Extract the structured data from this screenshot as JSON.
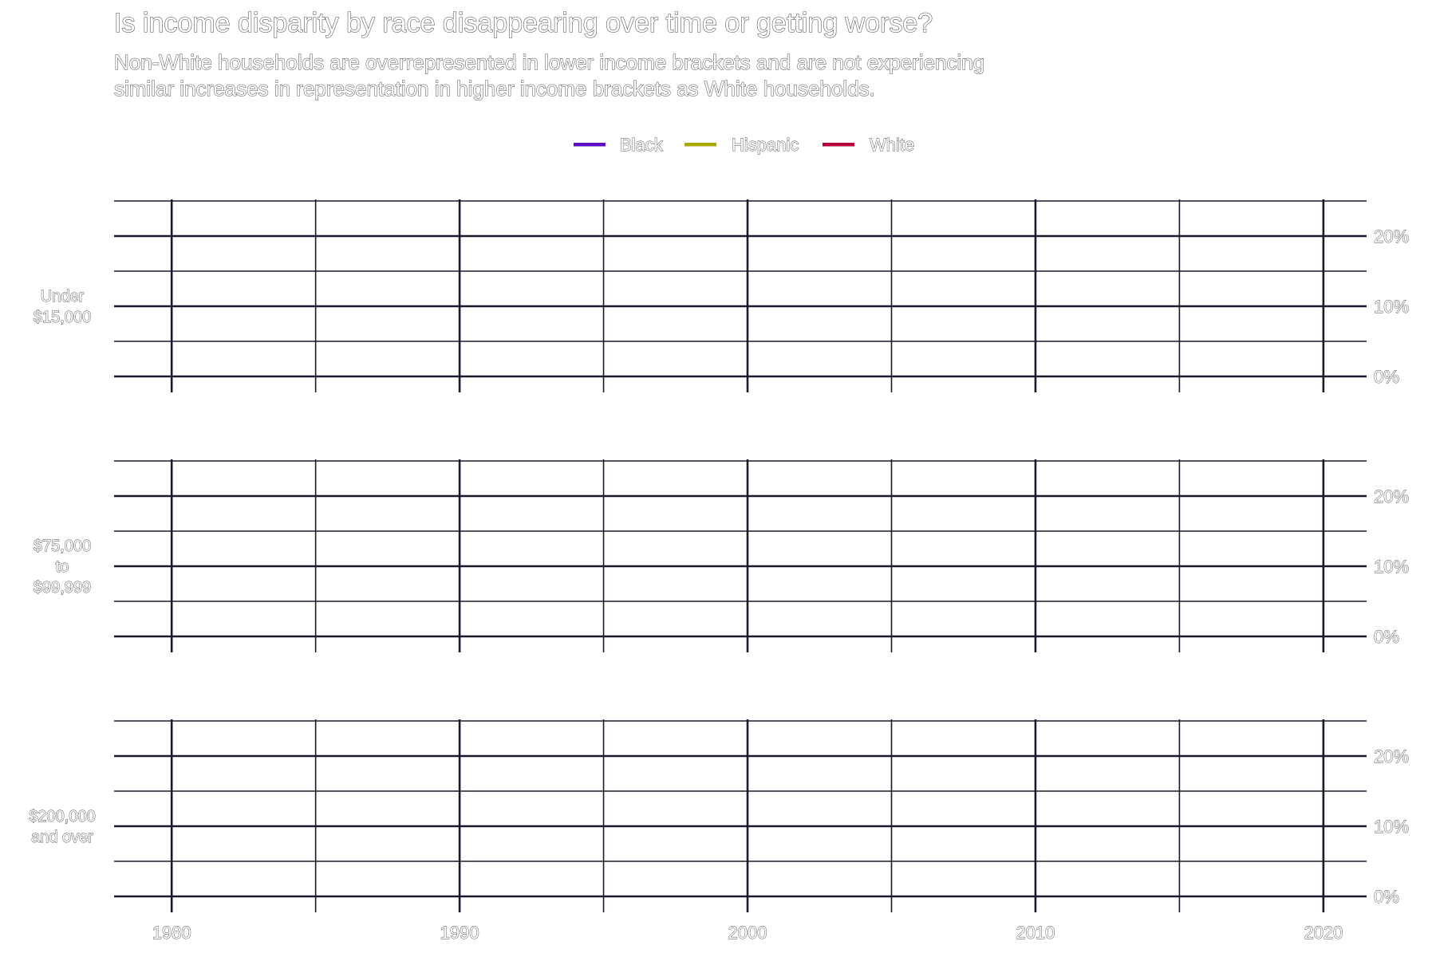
{
  "chart_data": {
    "type": "line",
    "title": "Is income disparity by race disappearing over time or getting worse?",
    "subtitle_lines": [
      "Non-White households are overrepresented in lower income brackets and are not experiencing",
      "similar increases in representation in higher income brackets as White households."
    ],
    "legend": {
      "position": "top",
      "entries": [
        {
          "name": "Black",
          "color": "#5b0fbf"
        },
        {
          "name": "Hispanic",
          "color": "#a8a800"
        },
        {
          "name": "White",
          "color": "#b3003c"
        }
      ]
    },
    "x": {
      "lim": [
        1978,
        2021.5
      ],
      "major_ticks": [
        1980,
        1990,
        2000,
        2010,
        2020
      ],
      "minor_ticks": [
        1985,
        1995,
        2005,
        2015
      ]
    },
    "y": {
      "lim": [
        0,
        0.25
      ],
      "tick_values": [
        0,
        0.1,
        0.2
      ],
      "tick_labels": [
        "0%",
        "10%",
        "20%"
      ],
      "minor_ticks": [
        0.05,
        0.15,
        0.25
      ],
      "position": "right"
    },
    "grid": true,
    "facets": [
      {
        "label_lines": [
          "Under",
          "$15,000"
        ],
        "series": []
      },
      {
        "label_lines": [
          "$75,000",
          "to",
          "$99,999"
        ],
        "series": []
      },
      {
        "label_lines": [
          "$200,000",
          "and over"
        ],
        "series": []
      }
    ]
  }
}
